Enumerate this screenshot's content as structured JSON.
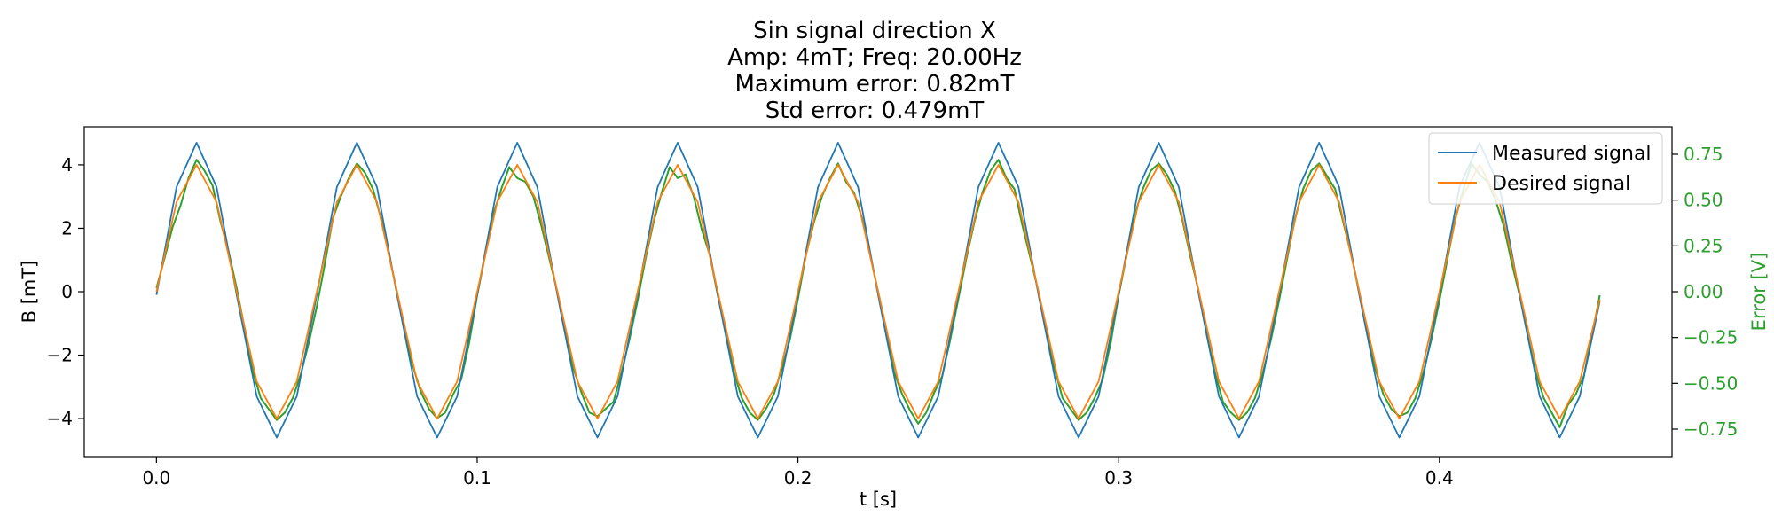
{
  "chart_data": {
    "type": "line",
    "title_lines": [
      "Sin signal direction X",
      "Amp: 4mT; Freq: 20.00Hz",
      "Maximum error: 0.82mT",
      "Std error: 0.479mT"
    ],
    "xlabel": "t [s]",
    "ylabel": "B [mT]",
    "ylabel_right": "Error [V]",
    "xlim": [
      -0.0225,
      0.4725
    ],
    "ylim": [
      -5.2,
      5.2
    ],
    "ylim_right": [
      -0.9,
      0.9
    ],
    "xticks": [
      0.0,
      0.1,
      0.2,
      0.3,
      0.4
    ],
    "xtick_labels": [
      "0.0",
      "0.1",
      "0.2",
      "0.3",
      "0.4"
    ],
    "yticks": [
      4,
      2,
      0,
      -2,
      -4
    ],
    "ytick_labels": [
      "4",
      "2",
      "0",
      "−2",
      "−4"
    ],
    "yticks_right": [
      0.75,
      0.5,
      0.25,
      0.0,
      -0.25,
      -0.5,
      -0.75
    ],
    "ytick_labels_right": [
      "0.75",
      "0.50",
      "0.25",
      "0.00",
      "−0.25",
      "−0.50",
      "−0.75"
    ],
    "grid": false,
    "legend_position": "top-right",
    "series": [
      {
        "name": "Measured signal",
        "axis": "left",
        "color": "#1f77b4",
        "x": [
          0.0,
          0.00625,
          0.0125,
          0.01875,
          0.025,
          0.03125,
          0.0375,
          0.04375,
          0.05,
          0.05625,
          0.0625,
          0.06875,
          0.075,
          0.08125,
          0.0875,
          0.09375,
          0.1,
          0.10625,
          0.1125,
          0.11875,
          0.125,
          0.13125,
          0.1375,
          0.14375,
          0.15,
          0.15625,
          0.1625,
          0.16875,
          0.175,
          0.18125,
          0.1875,
          0.19375,
          0.2,
          0.20625,
          0.2125,
          0.21875,
          0.225,
          0.23125,
          0.2375,
          0.24375,
          0.25,
          0.25625,
          0.2625,
          0.26875,
          0.275,
          0.28125,
          0.2875,
          0.29375,
          0.3,
          0.30625,
          0.3125,
          0.31875,
          0.325,
          0.33125,
          0.3375,
          0.34375,
          0.35,
          0.35625,
          0.3625,
          0.36875,
          0.375,
          0.38125,
          0.3875,
          0.39375,
          0.4,
          0.40625,
          0.4125,
          0.41875,
          0.425,
          0.43125,
          0.4375,
          0.44375,
          0.45
        ],
        "values": [
          -0.1,
          3.3,
          4.7,
          3.3,
          -0.1,
          -3.3,
          -4.6,
          -3.3,
          -0.1,
          3.3,
          4.7,
          3.3,
          -0.1,
          -3.3,
          -4.6,
          -3.3,
          -0.1,
          3.3,
          4.7,
          3.3,
          -0.1,
          -3.3,
          -4.6,
          -3.3,
          -0.1,
          3.3,
          4.7,
          3.3,
          -0.1,
          -3.3,
          -4.6,
          -3.3,
          -0.1,
          3.3,
          4.7,
          3.3,
          -0.1,
          -3.3,
          -4.6,
          -3.3,
          -0.1,
          3.3,
          4.7,
          3.3,
          -0.1,
          -3.3,
          -4.6,
          -3.3,
          -0.1,
          3.3,
          4.7,
          3.3,
          -0.1,
          -3.3,
          -4.6,
          -3.3,
          -0.1,
          3.3,
          4.7,
          3.3,
          -0.1,
          -3.3,
          -4.6,
          -3.3,
          -0.1,
          3.3,
          4.7,
          3.3,
          -0.1,
          -3.3,
          -4.6,
          -3.3,
          -0.3
        ]
      },
      {
        "name": "Desired signal",
        "axis": "left",
        "color": "#ff7f0e",
        "x": [
          0.0,
          0.00625,
          0.0125,
          0.01875,
          0.025,
          0.03125,
          0.0375,
          0.04375,
          0.05,
          0.05625,
          0.0625,
          0.06875,
          0.075,
          0.08125,
          0.0875,
          0.09375,
          0.1,
          0.10625,
          0.1125,
          0.11875,
          0.125,
          0.13125,
          0.1375,
          0.14375,
          0.15,
          0.15625,
          0.1625,
          0.16875,
          0.175,
          0.18125,
          0.1875,
          0.19375,
          0.2,
          0.20625,
          0.2125,
          0.21875,
          0.225,
          0.23125,
          0.2375,
          0.24375,
          0.25,
          0.25625,
          0.2625,
          0.26875,
          0.275,
          0.28125,
          0.2875,
          0.29375,
          0.3,
          0.30625,
          0.3125,
          0.31875,
          0.325,
          0.33125,
          0.3375,
          0.34375,
          0.35,
          0.35625,
          0.3625,
          0.36875,
          0.375,
          0.38125,
          0.3875,
          0.39375,
          0.4,
          0.40625,
          0.4125,
          0.41875,
          0.425,
          0.43125,
          0.4375,
          0.44375,
          0.45
        ],
        "values": [
          0.0,
          2.83,
          4.0,
          2.83,
          0.0,
          -2.83,
          -4.0,
          -2.83,
          0.0,
          2.83,
          4.0,
          2.83,
          0.0,
          -2.83,
          -4.0,
          -2.83,
          0.0,
          2.83,
          4.0,
          2.83,
          0.0,
          -2.83,
          -4.0,
          -2.83,
          0.0,
          2.83,
          4.0,
          2.83,
          0.0,
          -2.83,
          -4.0,
          -2.83,
          0.0,
          2.83,
          4.0,
          2.83,
          0.0,
          -2.83,
          -4.0,
          -2.83,
          0.0,
          2.83,
          4.0,
          2.83,
          0.0,
          -2.83,
          -4.0,
          -2.83,
          0.0,
          2.83,
          4.0,
          2.83,
          0.0,
          -2.83,
          -4.0,
          -2.83,
          0.0,
          2.83,
          4.0,
          2.83,
          0.0,
          -2.83,
          -4.0,
          -2.83,
          0.0,
          2.83,
          4.0,
          2.83,
          0.0,
          -2.83,
          -4.0,
          -2.83,
          -0.25
        ]
      },
      {
        "name": "",
        "axis": "right",
        "color": "#2ca02c",
        "x": [
          0.0,
          0.0025,
          0.005,
          0.0075,
          0.01,
          0.0125,
          0.015,
          0.0175,
          0.02,
          0.0225,
          0.025,
          0.0275,
          0.03,
          0.0325,
          0.035,
          0.0375,
          0.04,
          0.0425,
          0.045,
          0.0475,
          0.05,
          0.0525,
          0.055,
          0.0575,
          0.06,
          0.0625,
          0.065,
          0.0675,
          0.07,
          0.0725,
          0.075,
          0.0775,
          0.08,
          0.0825,
          0.085,
          0.0875,
          0.09,
          0.0925,
          0.095,
          0.0975,
          0.1,
          0.1025,
          0.105,
          0.1075,
          0.11,
          0.1125,
          0.115,
          0.1175,
          0.12,
          0.1225,
          0.125,
          0.1275,
          0.13,
          0.1325,
          0.135,
          0.1375,
          0.14,
          0.1425,
          0.145,
          0.1475,
          0.15,
          0.1525,
          0.155,
          0.1575,
          0.16,
          0.1625,
          0.165,
          0.1675,
          0.17,
          0.1725,
          0.175,
          0.1775,
          0.18,
          0.1825,
          0.185,
          0.1875,
          0.19,
          0.1925,
          0.195,
          0.1975,
          0.2,
          0.2025,
          0.205,
          0.2075,
          0.21,
          0.2125,
          0.215,
          0.2175,
          0.22,
          0.2225,
          0.225,
          0.2275,
          0.23,
          0.2325,
          0.235,
          0.2375,
          0.24,
          0.2425,
          0.245,
          0.2475,
          0.25,
          0.2525,
          0.255,
          0.2575,
          0.26,
          0.2625,
          0.265,
          0.2675,
          0.27,
          0.2725,
          0.275,
          0.2775,
          0.28,
          0.2825,
          0.285,
          0.2875,
          0.29,
          0.2925,
          0.295,
          0.2975,
          0.3,
          0.3025,
          0.305,
          0.3075,
          0.31,
          0.3125,
          0.315,
          0.3175,
          0.32,
          0.3225,
          0.325,
          0.3275,
          0.33,
          0.3325,
          0.335,
          0.3375,
          0.34,
          0.3425,
          0.345,
          0.3475,
          0.35,
          0.3525,
          0.355,
          0.3575,
          0.36,
          0.3625,
          0.365,
          0.3675,
          0.37,
          0.3725,
          0.375,
          0.3775,
          0.38,
          0.3825,
          0.385,
          0.3875,
          0.39,
          0.3925,
          0.395,
          0.3975,
          0.4,
          0.4025,
          0.405,
          0.4075,
          0.41,
          0.4125,
          0.415,
          0.4175,
          0.42,
          0.4225,
          0.425,
          0.4275,
          0.43,
          0.4325,
          0.435,
          0.4375,
          0.44,
          0.4425,
          0.445,
          0.4475,
          0.45
        ],
        "values": [
          0.02,
          0.18,
          0.35,
          0.47,
          0.62,
          0.72,
          0.66,
          0.58,
          0.38,
          0.22,
          0.02,
          -0.2,
          -0.43,
          -0.58,
          -0.64,
          -0.7,
          -0.66,
          -0.58,
          -0.45,
          -0.28,
          -0.08,
          0.15,
          0.4,
          0.52,
          0.62,
          0.7,
          0.65,
          0.56,
          0.4,
          0.2,
          0.0,
          -0.22,
          -0.41,
          -0.55,
          -0.64,
          -0.69,
          -0.66,
          -0.56,
          -0.48,
          -0.28,
          -0.02,
          0.2,
          0.42,
          0.56,
          0.68,
          0.62,
          0.6,
          0.52,
          0.36,
          0.18,
          0.0,
          -0.22,
          -0.42,
          -0.55,
          -0.66,
          -0.68,
          -0.64,
          -0.6,
          -0.44,
          -0.26,
          -0.05,
          0.18,
          0.38,
          0.54,
          0.68,
          0.62,
          0.64,
          0.52,
          0.34,
          0.2,
          -0.02,
          -0.22,
          -0.44,
          -0.58,
          -0.66,
          -0.7,
          -0.64,
          -0.56,
          -0.42,
          -0.26,
          -0.04,
          0.2,
          0.38,
          0.52,
          0.62,
          0.7,
          0.6,
          0.54,
          0.4,
          0.2,
          0.0,
          -0.2,
          -0.44,
          -0.56,
          -0.65,
          -0.72,
          -0.66,
          -0.55,
          -0.46,
          -0.26,
          -0.04,
          0.18,
          0.38,
          0.54,
          0.66,
          0.72,
          0.62,
          0.56,
          0.36,
          0.18,
          0.0,
          -0.22,
          -0.42,
          -0.58,
          -0.64,
          -0.7,
          -0.66,
          -0.58,
          -0.48,
          -0.28,
          -0.02,
          0.2,
          0.42,
          0.56,
          0.66,
          0.7,
          0.64,
          0.55,
          0.38,
          0.18,
          0.0,
          -0.24,
          -0.44,
          -0.6,
          -0.66,
          -0.7,
          -0.66,
          -0.58,
          -0.44,
          -0.26,
          -0.05,
          0.18,
          0.4,
          0.56,
          0.66,
          0.7,
          0.63,
          0.56,
          0.38,
          0.2,
          0.0,
          -0.22,
          -0.42,
          -0.56,
          -0.64,
          -0.68,
          -0.66,
          -0.58,
          -0.44,
          -0.26,
          -0.05,
          0.18,
          0.4,
          0.56,
          0.7,
          0.64,
          0.6,
          0.5,
          0.36,
          0.16,
          -0.02,
          -0.24,
          -0.44,
          -0.58,
          -0.66,
          -0.74,
          -0.62,
          -0.56,
          -0.46,
          -0.24,
          -0.02
        ]
      }
    ]
  }
}
